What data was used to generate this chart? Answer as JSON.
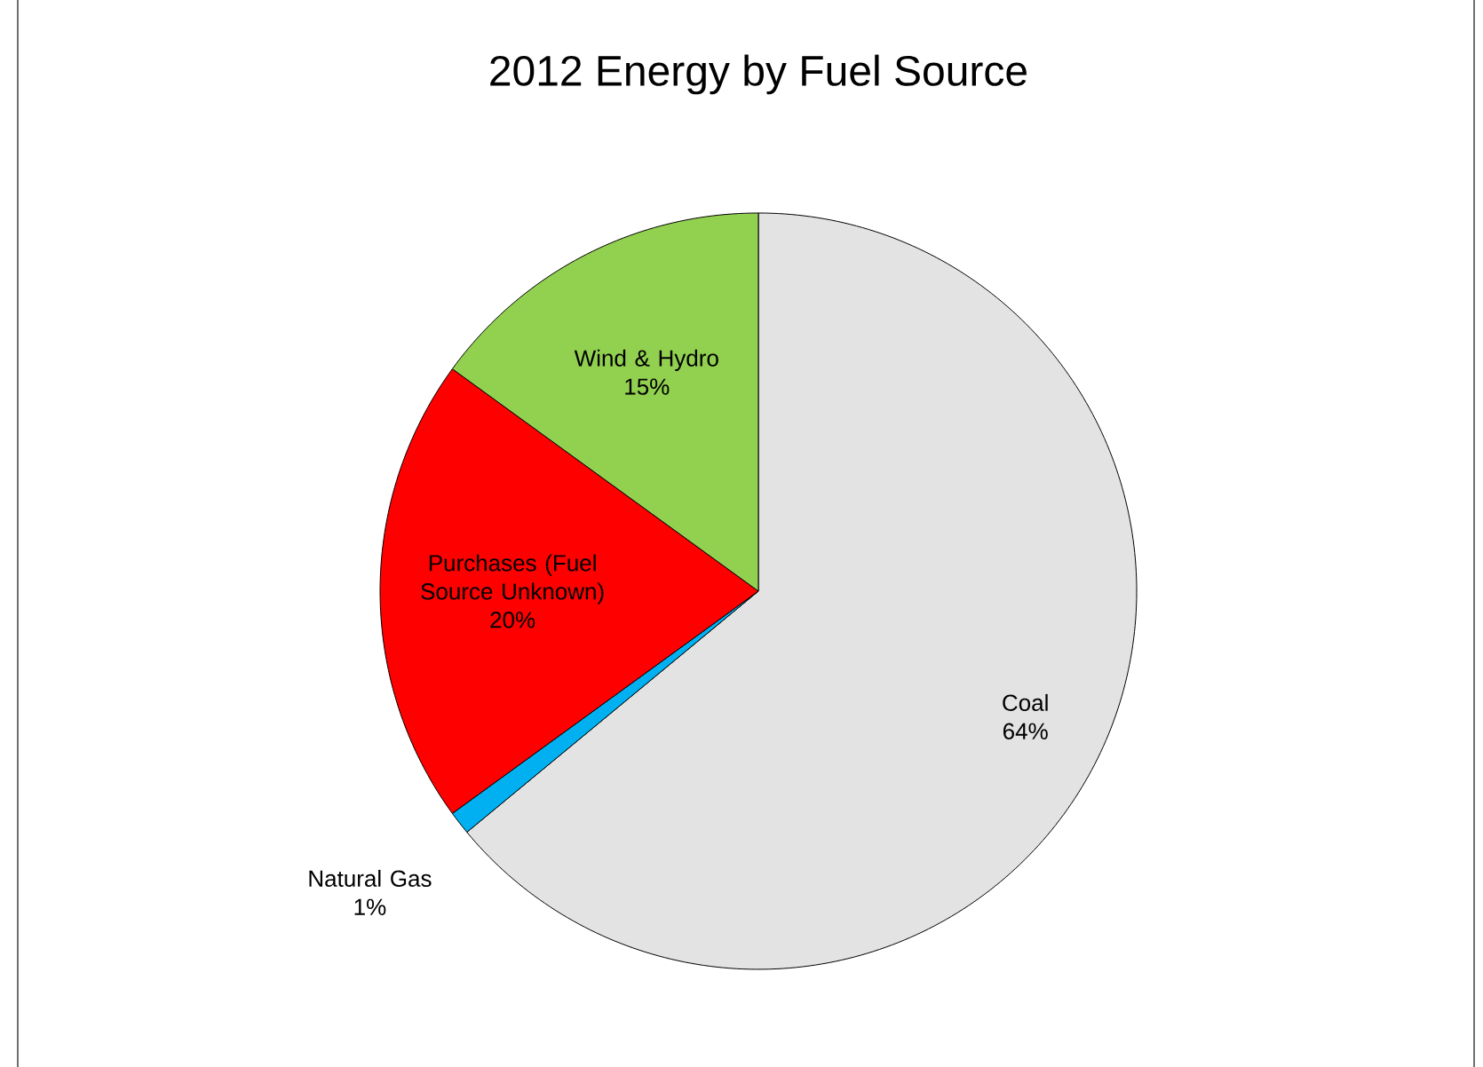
{
  "chart_data": {
    "type": "pie",
    "title": "2012 Energy by Fuel Source",
    "categories": [
      "Coal",
      "Natural Gas",
      "Purchases (Fuel Source Unknown)",
      "Wind & Hydro"
    ],
    "values": [
      64,
      1,
      20,
      15
    ],
    "value_labels": [
      "64%",
      "1%",
      "20%",
      "15%"
    ],
    "colors": [
      "#e3e3e3",
      "#00b0f0",
      "#ff0000",
      "#92d050"
    ]
  }
}
